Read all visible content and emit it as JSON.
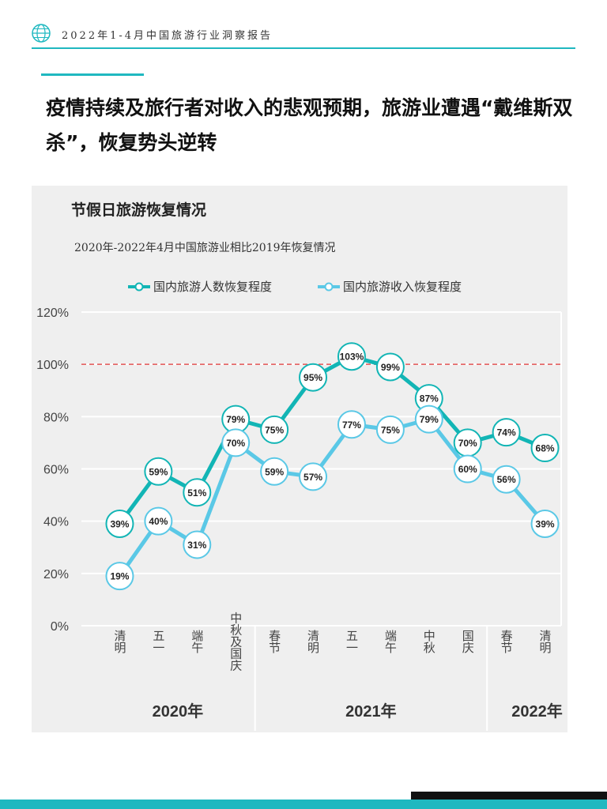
{
  "header": {
    "text": "2022年1-4月中国旅游行业洞察报告",
    "logo_icon": "globe-icon",
    "accent_color": "#1fb8c0"
  },
  "title": "疫情持续及旅行者对收入的悲观预期，旅游业遭遇“戴维斯双杀”，恢复势头逆转",
  "chart_data": {
    "type": "line",
    "title": "节假日旅游恢复情况",
    "subtitle": "2020年-2022年4月中国旅游业相比2019年恢复情况",
    "categories": [
      "清明",
      "五一",
      "端午",
      "中秋及国庆",
      "春节",
      "清明",
      "五一",
      "端午",
      "中秋",
      "国庆",
      "春节",
      "清明"
    ],
    "groups": [
      {
        "label": "2020年",
        "count": 4
      },
      {
        "label": "2021年",
        "count": 6
      },
      {
        "label": "2022年",
        "count": 2
      }
    ],
    "series": [
      {
        "name": "国内旅游人数恢复程度",
        "color": "#12b5b5",
        "values": [
          39,
          59,
          51,
          79,
          75,
          95,
          103,
          99,
          87,
          70,
          74,
          68
        ]
      },
      {
        "name": "国内旅游收入恢复程度",
        "color": "#5ac8e6",
        "values": [
          19,
          40,
          31,
          70,
          59,
          57,
          77,
          75,
          79,
          60,
          56,
          39
        ]
      }
    ],
    "y_ticks": [
      "0%",
      "20%",
      "40%",
      "60%",
      "80%",
      "100%",
      "120%"
    ],
    "ylim": [
      0,
      120
    ],
    "reference_line": 100,
    "reference_color": "#e05050",
    "grid": true,
    "legend_position": "top"
  }
}
